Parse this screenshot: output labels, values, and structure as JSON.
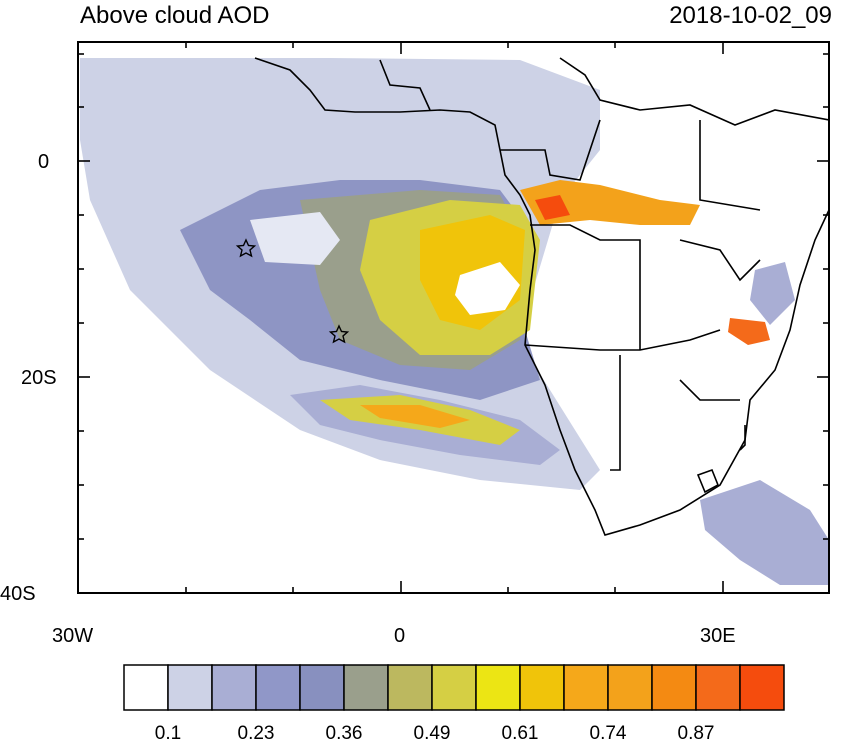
{
  "header": {
    "title": "Above cloud AOD",
    "timestamp": "2018-10-02_09"
  },
  "axes": {
    "y_labels": [
      "0",
      "20S",
      "40S"
    ],
    "x_labels": [
      "30W",
      "0",
      "30E"
    ]
  },
  "colorbar": {
    "colors": [
      "#ffffff",
      "#cdd2e6",
      "#a9aed4",
      "#9097c8",
      "#8890bf",
      "#9a9f8c",
      "#bcb85f",
      "#d5cf44",
      "#ece514",
      "#f0c40a",
      "#f5a81a",
      "#f3a21b",
      "#f48a12",
      "#f46a1a",
      "#f54c0d"
    ],
    "labels": [
      "0.1",
      "0.23",
      "0.36",
      "0.49",
      "0.61",
      "0.74",
      "0.87"
    ]
  },
  "markers": [
    {
      "name": "star-marker-1",
      "symbol": "star"
    },
    {
      "name": "star-marker-2",
      "symbol": "star"
    }
  ]
}
